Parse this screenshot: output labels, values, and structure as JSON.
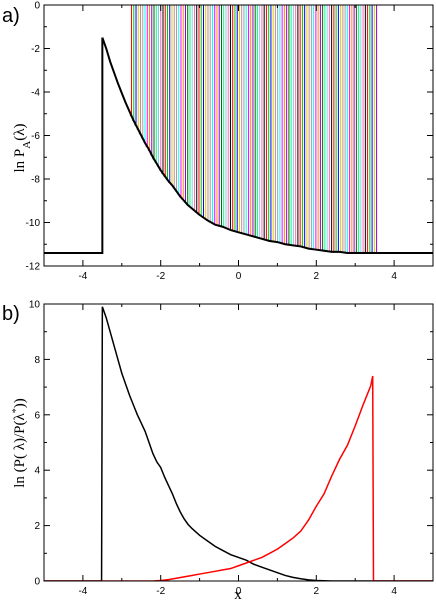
{
  "chart_data": [
    {
      "panel_label": "a)",
      "type": "line",
      "xlabel": "",
      "ylabel": "ln P_A(λ)",
      "xlim": [
        -5,
        5
      ],
      "ylim": [
        -12,
        0
      ],
      "xticks": [
        -4,
        -2,
        0,
        2,
        4
      ],
      "yticks": [
        0,
        -2,
        -4,
        -6,
        -8,
        -10,
        -12
      ],
      "xtick_labels": [
        "-4",
        "-2",
        "0",
        "2",
        "4"
      ],
      "ytick_labels": [
        "0",
        "-2",
        "-4",
        "-6",
        "-8",
        "-10",
        "-12"
      ],
      "grid": false,
      "legend": false,
      "baseline": -11.4,
      "wall_x": -3.5,
      "profile": {
        "x": [
          -3.5,
          -3.4,
          -3.3,
          -3.2,
          -3.1,
          -3.0,
          -2.9,
          -2.8,
          -2.7,
          -2.6,
          -2.5,
          -2.4,
          -2.3,
          -2.2,
          -2.1,
          -2.0,
          -1.9,
          -1.8,
          -1.7,
          -1.6,
          -1.5,
          -1.4,
          -1.3,
          -1.2,
          -1.1,
          -1.0,
          -0.8,
          -0.6,
          -0.4,
          -0.2,
          0.0,
          0.2,
          0.4,
          0.6,
          0.8,
          1.0,
          1.2,
          1.4,
          1.6,
          1.8,
          2.0,
          2.2,
          2.4,
          2.6,
          2.8,
          3.0,
          3.2,
          3.4,
          3.5
        ],
        "y": [
          -1.5,
          -2.0,
          -2.6,
          -3.1,
          -3.6,
          -4.05,
          -4.5,
          -4.9,
          -5.3,
          -5.65,
          -6.0,
          -6.35,
          -6.65,
          -7.0,
          -7.3,
          -7.6,
          -7.85,
          -8.1,
          -8.3,
          -8.55,
          -8.8,
          -9.0,
          -9.2,
          -9.35,
          -9.5,
          -9.65,
          -9.9,
          -10.1,
          -10.2,
          -10.35,
          -10.45,
          -10.55,
          -10.65,
          -10.75,
          -10.85,
          -10.9,
          -11.0,
          -11.05,
          -11.1,
          -11.2,
          -11.25,
          -11.3,
          -11.35,
          -11.35,
          -11.4,
          -11.4,
          -11.4,
          -11.4,
          -11.4
        ]
      },
      "overlay_curves": {
        "count": 110,
        "x_start": -2.75,
        "x_end": 3.55,
        "colors": [
          "#ff0000",
          "#00cc00",
          "#0000ff",
          "#e6c800",
          "#bc8f8f",
          "#a0a0a0",
          "#00ffff",
          "#ff00ff",
          "#ff8c00",
          "#9400d3",
          "#006400",
          "#00ff7f",
          "#87ceeb",
          "#ff69b4",
          "#000000"
        ],
        "last_color": "#9400d3"
      },
      "colors": {
        "profile": "#000000",
        "baseline": "#000000"
      }
    },
    {
      "panel_label": "b)",
      "type": "line",
      "xlabel": "x",
      "ylabel": "ln (P( λ)/P(λ*))",
      "xlim": [
        -5,
        5
      ],
      "ylim": [
        0,
        10
      ],
      "xticks": [
        -4,
        -2,
        0,
        2,
        4
      ],
      "yticks": [
        0,
        2,
        4,
        6,
        8,
        10
      ],
      "xtick_labels": [
        "-4",
        "-2",
        "0",
        "2",
        "4"
      ],
      "ytick_labels": [
        "0",
        "2",
        "4",
        "6",
        "8",
        "10"
      ],
      "grid": false,
      "legend": false,
      "series": [
        {
          "color": "#000000",
          "x": [
            -5.0,
            -3.52,
            -3.5,
            -3.4,
            -3.3,
            -3.2,
            -3.1,
            -3.0,
            -2.9,
            -2.8,
            -2.7,
            -2.6,
            -2.5,
            -2.4,
            -2.3,
            -2.2,
            -2.1,
            -2.0,
            -1.9,
            -1.8,
            -1.7,
            -1.6,
            -1.5,
            -1.4,
            -1.3,
            -1.2,
            -1.0,
            -0.8,
            -0.6,
            -0.4,
            -0.2,
            0.0,
            0.2,
            0.4,
            0.6,
            0.8,
            1.0,
            1.2,
            1.4,
            1.6,
            1.8,
            2.0,
            2.2,
            2.4,
            2.6,
            2.8,
            3.0,
            3.5,
            4.0,
            5.0
          ],
          "y": [
            0,
            0,
            9.9,
            9.5,
            9.0,
            8.5,
            8.0,
            7.5,
            7.1,
            6.7,
            6.35,
            6.0,
            5.7,
            5.4,
            5.0,
            4.6,
            4.3,
            4.1,
            3.75,
            3.45,
            3.15,
            2.8,
            2.5,
            2.25,
            2.05,
            1.9,
            1.65,
            1.45,
            1.25,
            1.1,
            0.95,
            0.85,
            0.75,
            0.6,
            0.5,
            0.4,
            0.3,
            0.2,
            0.13,
            0.08,
            0.04,
            0.02,
            0.01,
            0.0,
            0.0,
            0.0,
            0.0,
            0.0,
            0.0,
            0.0
          ]
        },
        {
          "color": "#ff0000",
          "x": [
            -5.0,
            -2.2,
            -2.0,
            -1.8,
            -1.6,
            -1.4,
            -1.2,
            -1.0,
            -0.8,
            -0.6,
            -0.4,
            -0.2,
            0.0,
            0.2,
            0.4,
            0.6,
            0.8,
            1.0,
            1.2,
            1.4,
            1.6,
            1.8,
            2.0,
            2.2,
            2.4,
            2.6,
            2.8,
            3.0,
            3.2,
            3.3,
            3.4,
            3.45,
            3.47,
            5.0
          ],
          "y": [
            0,
            0,
            0.02,
            0.05,
            0.1,
            0.15,
            0.2,
            0.25,
            0.3,
            0.35,
            0.4,
            0.45,
            0.55,
            0.65,
            0.75,
            0.85,
            1.0,
            1.15,
            1.35,
            1.55,
            1.8,
            2.2,
            2.7,
            3.15,
            3.8,
            4.4,
            4.9,
            5.6,
            6.35,
            6.7,
            7.05,
            7.4,
            0,
            0
          ]
        }
      ]
    }
  ]
}
